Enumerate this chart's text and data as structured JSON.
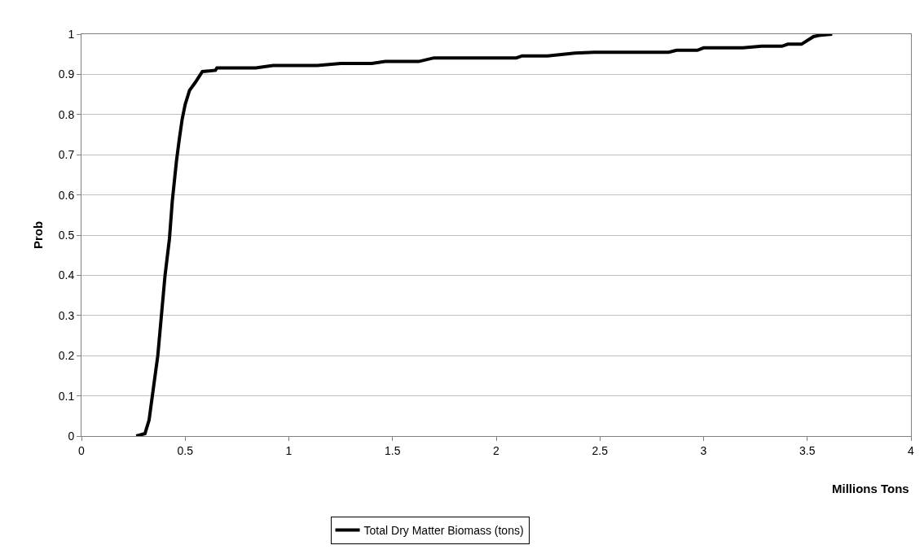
{
  "chart_data": {
    "type": "line",
    "xlabel": "Millions Tons",
    "ylabel": "Prob",
    "xlim": [
      0,
      4
    ],
    "xticks": [
      0,
      0.5,
      1,
      1.5,
      2,
      2.5,
      3,
      3.5,
      4
    ],
    "ylim": [
      0,
      1
    ],
    "yticks": [
      0,
      0.1,
      0.2,
      0.3,
      0.4,
      0.5,
      0.6,
      0.7,
      0.8,
      0.9,
      1
    ],
    "grid": "y",
    "legend": "bottom",
    "marker": "none",
    "line_style": "solid",
    "series": [
      {
        "name": "Total Dry Matter Biomass (tons)",
        "color": "#000000",
        "x": [
          0.264,
          0.306,
          0.326,
          0.347,
          0.368,
          0.382,
          0.403,
          0.424,
          0.438,
          0.458,
          0.472,
          0.486,
          0.5,
          0.521,
          0.549,
          0.583,
          0.646,
          0.653,
          0.84,
          0.924,
          1.137,
          1.25,
          1.4,
          1.465,
          1.626,
          1.7,
          2.097,
          2.125,
          2.248,
          2.38,
          2.473,
          2.832,
          2.87,
          2.97,
          3.0,
          3.19,
          3.28,
          3.378,
          3.406,
          3.472,
          3.53,
          3.557,
          3.62
        ],
        "values": [
          0,
          0.006,
          0.04,
          0.12,
          0.2,
          0.28,
          0.4,
          0.49,
          0.585,
          0.684,
          0.74,
          0.79,
          0.825,
          0.86,
          0.88,
          0.907,
          0.91,
          0.916,
          0.916,
          0.922,
          0.922,
          0.927,
          0.927,
          0.932,
          0.932,
          0.941,
          0.941,
          0.946,
          0.946,
          0.953,
          0.955,
          0.955,
          0.96,
          0.96,
          0.966,
          0.966,
          0.97,
          0.97,
          0.975,
          0.975,
          0.994,
          0.997,
          1.0
        ]
      }
    ]
  }
}
